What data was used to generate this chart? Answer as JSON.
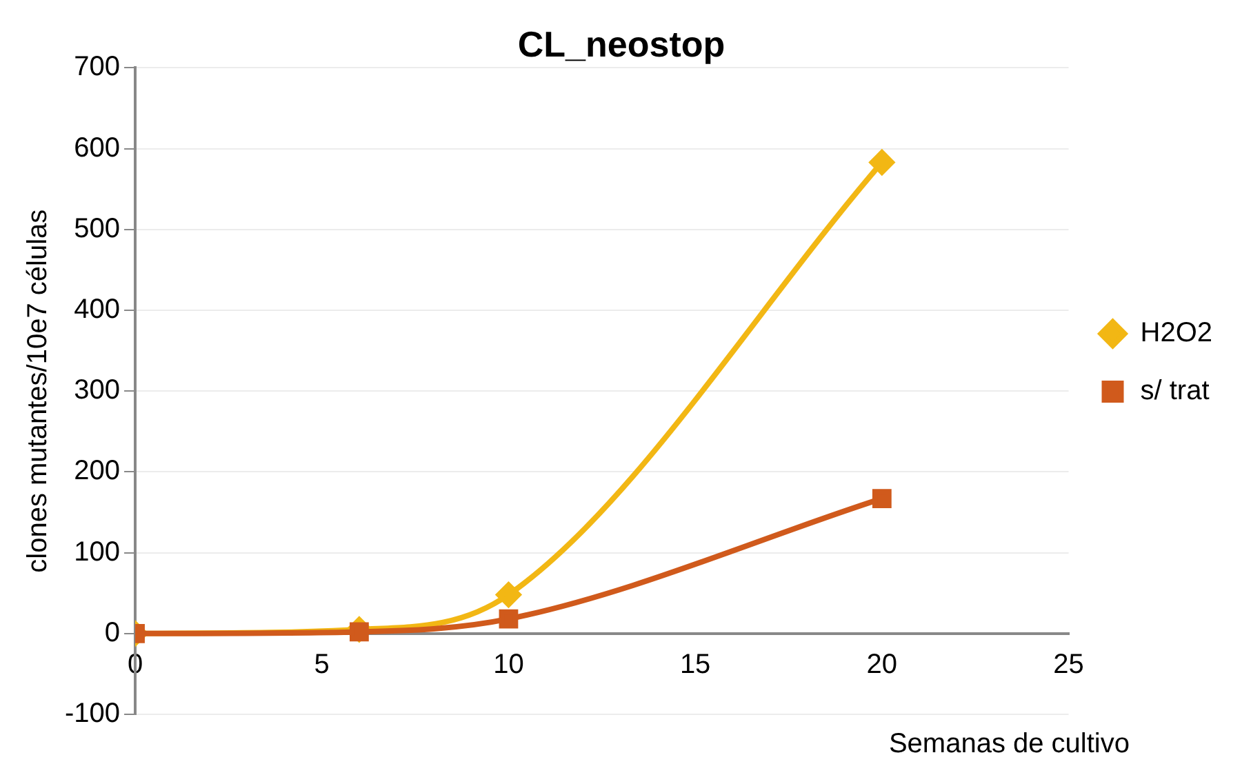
{
  "chart_data": {
    "type": "line",
    "title": "CL_neostop",
    "xlabel": "Semanas de cultivo",
    "ylabel": "clones mutantes/10e7 células",
    "x": [
      0,
      6,
      10,
      20
    ],
    "series": [
      {
        "name": "H2O2",
        "color": "#f2b714",
        "values": [
          0,
          5,
          48,
          583
        ],
        "marker": "diamond"
      },
      {
        "name": "s/ trat",
        "color": "#d05a1c",
        "values": [
          0,
          2,
          18,
          167
        ],
        "marker": "square"
      }
    ],
    "xlim": [
      0,
      25
    ],
    "xticks": [
      0,
      5,
      10,
      15,
      20,
      25
    ],
    "ylim": [
      -100,
      700
    ],
    "yticks": [
      -100,
      0,
      100,
      200,
      300,
      400,
      500,
      600,
      700
    ],
    "grid": "y",
    "legend": "right",
    "line_style": "solid"
  }
}
